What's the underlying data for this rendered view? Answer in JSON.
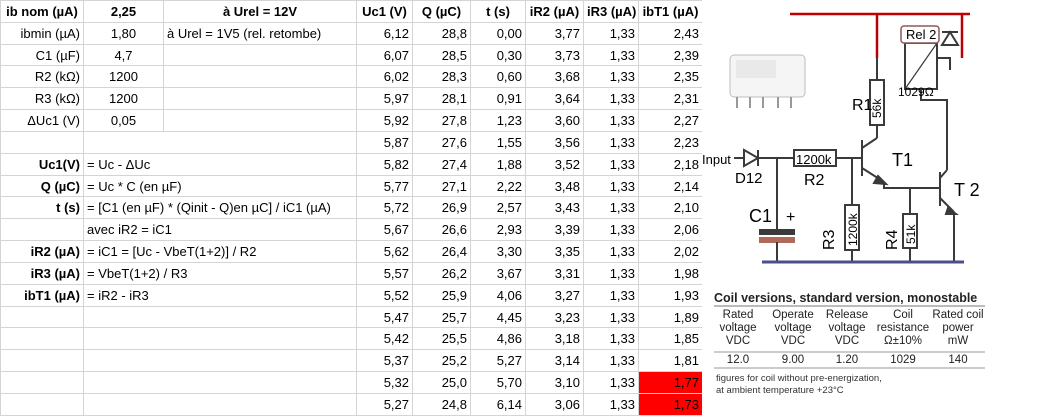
{
  "params": [
    {
      "label": "ib nom (µA)",
      "value": "2,25",
      "note": "à Urel = 12V"
    },
    {
      "label": "ibmin (µA)",
      "value": "1,80",
      "note": "à Urel = 1V5 (rel. retombe)"
    },
    {
      "label": "C1 (µF)",
      "value": "4,7",
      "note": ""
    },
    {
      "label": "R2 (kΩ)",
      "value": "1200",
      "note": ""
    },
    {
      "label": "R3 (kΩ)",
      "value": "1200",
      "note": ""
    },
    {
      "label": "ΔUc1 (V)",
      "value": "0,05",
      "note": ""
    }
  ],
  "formulas": [
    {
      "label": "",
      "text": ""
    },
    {
      "label": "Uc1(V)",
      "text": "= Uc -  ΔUc"
    },
    {
      "label": "Q (µC)",
      "text": "= Uc * C (en µF)"
    },
    {
      "label": "t (s)",
      "text": "= [C1 (en µF) * (Qinit - Q)en µC] / iC1 (µA)"
    },
    {
      "label": "",
      "text": "avec iR2 = iC1"
    },
    {
      "label": "iR2 (µA)",
      "text": "= iC1 = [Uc - VbeT(1+2)] / R2"
    },
    {
      "label": "iR3 (µA)",
      "text": "= VbeT(1+2) / R3"
    },
    {
      "label": "ibT1 (µA)",
      "text": "= iR2 - iR3"
    }
  ],
  "table": {
    "headers": [
      "Uc1 (V)",
      "Q (µC)",
      "t (s)",
      "iR2 (µA)",
      "iR3 (µA)",
      "ibT1 (µA)"
    ],
    "rows": [
      [
        "6,12",
        "28,8",
        "0,00",
        "3,77",
        "1,33",
        "2,43"
      ],
      [
        "6,07",
        "28,5",
        "0,30",
        "3,73",
        "1,33",
        "2,39"
      ],
      [
        "6,02",
        "28,3",
        "0,60",
        "3,68",
        "1,33",
        "2,35"
      ],
      [
        "5,97",
        "28,1",
        "0,91",
        "3,64",
        "1,33",
        "2,31"
      ],
      [
        "5,92",
        "27,8",
        "1,23",
        "3,60",
        "1,33",
        "2,27"
      ],
      [
        "5,87",
        "27,6",
        "1,55",
        "3,56",
        "1,33",
        "2,23"
      ],
      [
        "5,82",
        "27,4",
        "1,88",
        "3,52",
        "1,33",
        "2,18"
      ],
      [
        "5,77",
        "27,1",
        "2,22",
        "3,48",
        "1,33",
        "2,14"
      ],
      [
        "5,72",
        "26,9",
        "2,57",
        "3,43",
        "1,33",
        "2,10"
      ],
      [
        "5,67",
        "26,6",
        "2,93",
        "3,39",
        "1,33",
        "2,06"
      ],
      [
        "5,62",
        "26,4",
        "3,30",
        "3,35",
        "1,33",
        "2,02"
      ],
      [
        "5,57",
        "26,2",
        "3,67",
        "3,31",
        "1,33",
        "1,98"
      ],
      [
        "5,52",
        "25,9",
        "4,06",
        "3,27",
        "1,33",
        "1,93"
      ],
      [
        "5,47",
        "25,7",
        "4,45",
        "3,23",
        "1,33",
        "1,89"
      ],
      [
        "5,42",
        "25,5",
        "4,86",
        "3,18",
        "1,33",
        "1,85"
      ],
      [
        "5,37",
        "25,2",
        "5,27",
        "3,14",
        "1,33",
        "1,81"
      ],
      [
        "5,32",
        "25,0",
        "5,70",
        "3,10",
        "1,33",
        "1,77"
      ],
      [
        "5,27",
        "24,8",
        "6,14",
        "3,06",
        "1,33",
        "1,73"
      ]
    ],
    "highlight_color": "#ff0000"
  },
  "schematic": {
    "labels": {
      "rel": "Rel 2",
      "rel_res": "1029Ω",
      "r1": "R1",
      "r1_val": "56k",
      "input": "Input",
      "d12": "D12",
      "r2": "R2",
      "r2_val": "1200k",
      "t1": "T1",
      "t2": "T 2",
      "c1": "C1",
      "plus": "+",
      "r3": "R3",
      "r3_val": "1200k",
      "r4": "R4",
      "r4_val": "51k"
    },
    "wire_color": "#3a3a3a",
    "rail_color": "#c00000",
    "ground_color": "#4a4f8c"
  },
  "coil_table": {
    "title": "Coil versions, standard version, monostable",
    "h1": [
      "Rated",
      "Operate",
      "Release",
      "Coil",
      "Rated coil"
    ],
    "h2": [
      "voltage",
      "voltage",
      "voltage",
      "resistance",
      "power"
    ],
    "h3": [
      "VDC",
      "VDC",
      "VDC",
      "Ω±10%",
      "mW"
    ],
    "row": [
      "12.0",
      "9.00",
      "1.20",
      "1029",
      "140"
    ],
    "foot1": "figures for coil without pre-energization,",
    "foot2": "at ambient temperature +23°C"
  }
}
